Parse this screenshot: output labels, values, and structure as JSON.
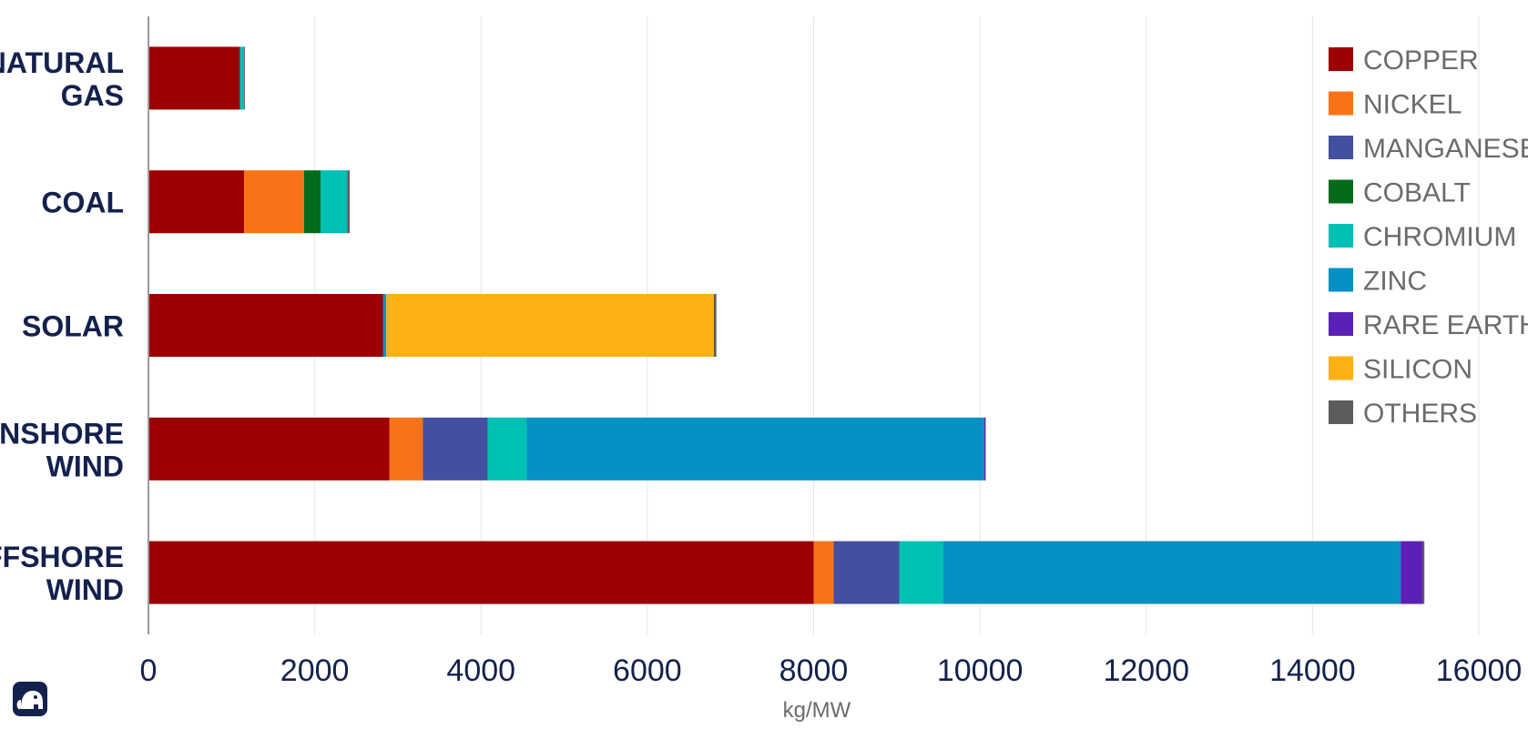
{
  "chart_data": {
    "type": "bar",
    "orientation": "horizontal",
    "stacked": true,
    "title": "",
    "xlabel": "kg/MW",
    "ylabel": "",
    "xlim": [
      0,
      16000
    ],
    "xticks": [
      0,
      2000,
      4000,
      6000,
      8000,
      10000,
      12000,
      14000,
      16000
    ],
    "grid": "vertical",
    "legend": "top-right",
    "categories": [
      [
        "NATURAL",
        "GAS"
      ],
      [
        "COAL"
      ],
      [
        "SOLAR"
      ],
      [
        "ONSHORE",
        "WIND"
      ],
      [
        "OFFSHORE",
        "WIND"
      ]
    ],
    "series": [
      {
        "name": "COPPER",
        "color": "#9c0000",
        "values": [
          1100,
          1150,
          2820,
          2900,
          8000
        ]
      },
      {
        "name": "NICKEL",
        "color": "#f97316",
        "values": [
          0,
          720,
          0,
          400,
          240
        ]
      },
      {
        "name": "MANGANESE",
        "color": "#4350a0",
        "values": [
          0,
          0,
          0,
          780,
          790
        ]
      },
      {
        "name": "COBALT",
        "color": "#046b1a",
        "values": [
          0,
          200,
          0,
          0,
          0
        ]
      },
      {
        "name": "CHROMIUM",
        "color": "#00bfb3",
        "values": [
          50,
          320,
          0,
          470,
          530
        ]
      },
      {
        "name": "ZINC",
        "color": "#0691c4",
        "values": [
          0,
          0,
          40,
          5500,
          5500
        ]
      },
      {
        "name": "RARE EARTHS",
        "color": "#5b21b6",
        "values": [
          0,
          0,
          0,
          15,
          265
        ]
      },
      {
        "name": "SILICON",
        "color": "#fdb014",
        "values": [
          0,
          0,
          3940,
          0,
          0
        ]
      },
      {
        "name": "OTHERS",
        "color": "#5c5c5c",
        "values": [
          10,
          30,
          30,
          5,
          20
        ]
      }
    ]
  },
  "logo": {
    "icon": "elephant-icon",
    "color": "#14214d"
  }
}
